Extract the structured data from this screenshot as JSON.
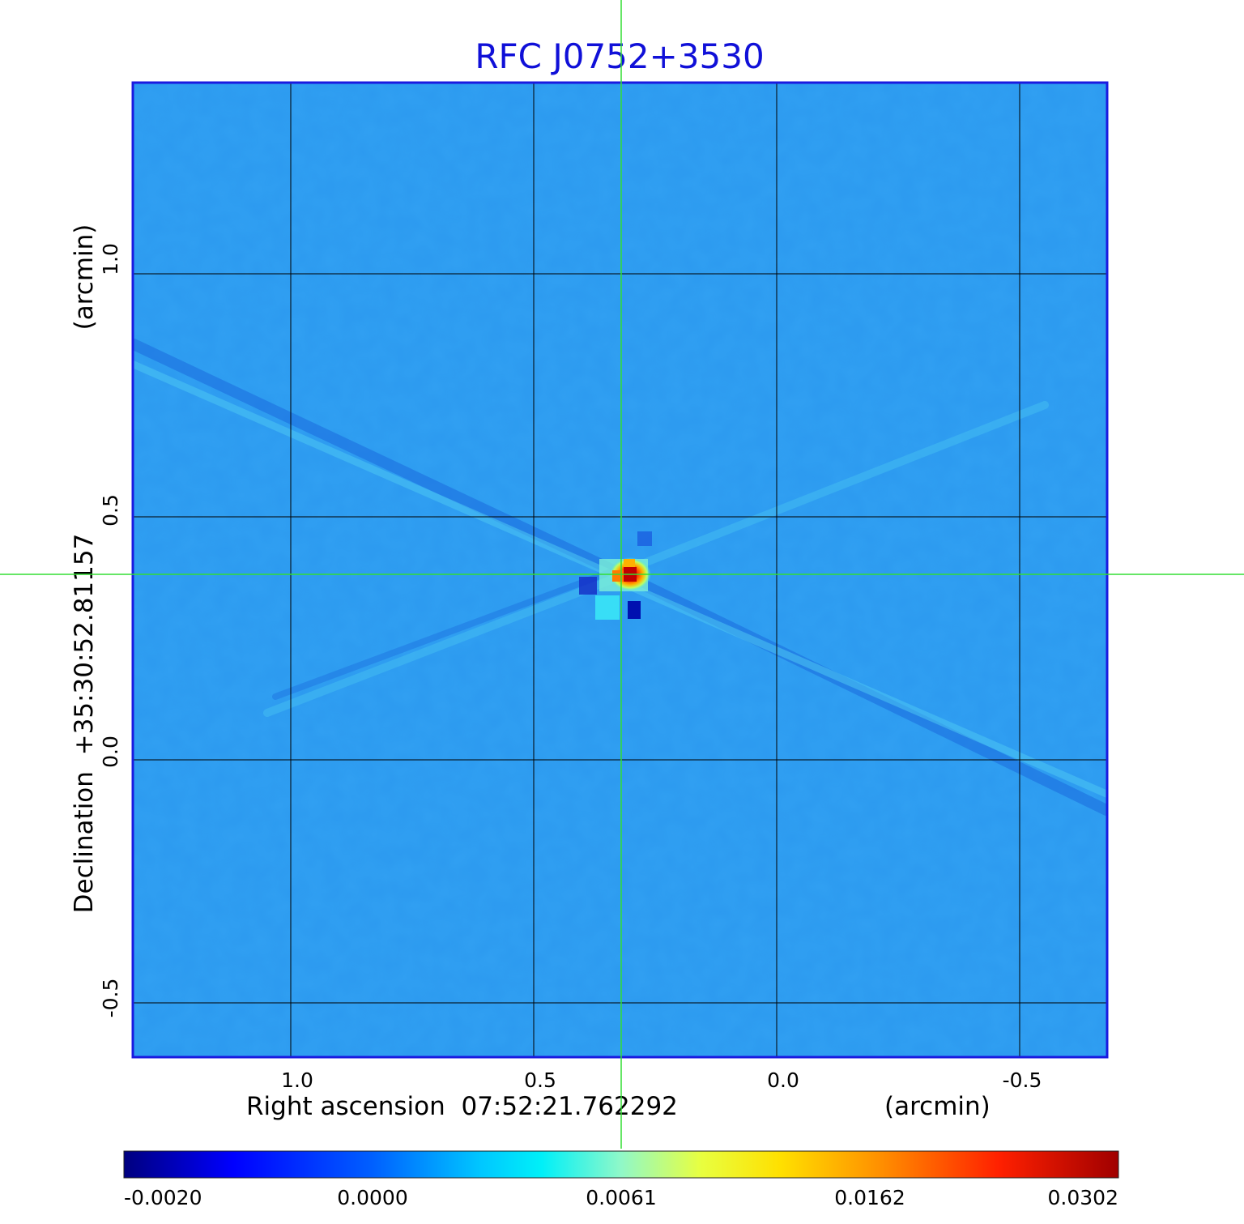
{
  "figure": {
    "title": "RFC J0752+3530",
    "xlabel": "Right ascension  07:52:21.762292",
    "xunit": "(arcmin)",
    "ylabel": "Declination  +35:30:52.81157",
    "yunit": "(arcmin)",
    "x_ticks": [
      "1.0",
      "0.5",
      "0.0",
      "-0.5"
    ],
    "y_ticks": [
      "1.0",
      "0.5",
      "0.0",
      "-0.5"
    ],
    "colorbar_ticks": [
      "-0.0020",
      "0.0000",
      "0.0061",
      "0.0162",
      "0.0302"
    ],
    "colors": {
      "title": "#1010d8",
      "frame": "#1a1ae0",
      "background_map": "#2d9bf0",
      "crosshair": "#33dd33",
      "grid": "#000000"
    }
  },
  "chart_data": {
    "type": "heatmap",
    "title": "RFC J0752+3530",
    "xlabel": "Right ascension  07:52:21.762292",
    "ylabel": "Declination  +35:30:52.81157",
    "x_unit": "(arcmin)",
    "y_unit": "(arcmin)",
    "xlim": [
      1.33,
      -0.68
    ],
    "ylim": [
      -0.61,
      1.39
    ],
    "x_ticks": [
      1.0,
      0.5,
      0.0,
      -0.5
    ],
    "y_ticks": [
      1.0,
      0.5,
      0.0,
      -0.5
    ],
    "grid": true,
    "colormap": "jet",
    "colorbar_ticks": [
      -0.002,
      0.0,
      0.0061,
      0.0162,
      0.0302
    ],
    "colorbar_range": [
      -0.002,
      0.0302
    ],
    "background_level": 0.0,
    "peak": {
      "x": 0.31,
      "y": 0.38,
      "value": 0.0302
    },
    "crosshair": {
      "x": 0.32,
      "y": 0.38
    }
  }
}
